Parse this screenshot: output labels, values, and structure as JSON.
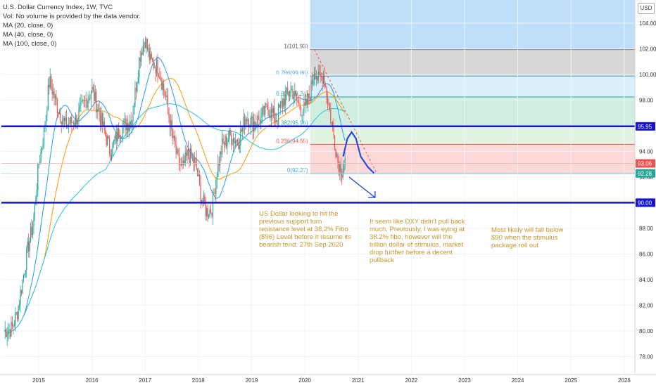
{
  "header": {
    "title": "U.S. Dollar Currency Index, 1W, TVC",
    "volume_note": "Vol: No volume is provided by the data vendor.",
    "indicators": [
      "MA (20, close, 0)",
      "MA (40, close, 0)",
      "MA (100, close, 0)"
    ],
    "currency_button": "USD"
  },
  "colors": {
    "up_candle": "#26a69a",
    "down_candle": "#ef5350",
    "ma20": "#2196f3",
    "ma40": "#ff9800",
    "ma100": "#26c6da",
    "support_line": "#1515d0",
    "annotation_text": "#c7962a",
    "projection": "#2b4ad8"
  },
  "annotations": {
    "note1": "US Dollar looking to hit the previous support turn resistance level at 38.2% Fibo ($96) Level before it resume its bearish tend.  27th Sep 2020",
    "note2": "It seem like DXY didn't pull back much. Previously, I was eying at 38.2% fibo, however will the trillion dollar of stimulus, market drop further before a decent pullback",
    "note3": "Most likely will fall below $90 when the stimulus package roll out"
  },
  "chart_data": {
    "type": "candlestick",
    "title": "U.S. Dollar Currency Index, 1W, TVC",
    "xlabel": "",
    "ylabel": "",
    "x_ticks": [
      "2015",
      "2016",
      "2017",
      "2018",
      "2019",
      "2020",
      "2021",
      "2022",
      "2023",
      "2024",
      "2025",
      "2026"
    ],
    "y_ticks": [
      "78.00",
      "80.00",
      "82.00",
      "84.00",
      "86.00",
      "88.00",
      "90.00",
      "92.00",
      "94.00",
      "96.00",
      "98.00",
      "100.00",
      "102.00",
      "104.00"
    ],
    "ylim": [
      76.6,
      105.8
    ],
    "xlim": [
      2014.3,
      2026.2
    ],
    "price_badges": [
      {
        "label": "95.95",
        "value": 95.95,
        "color": "#1515d0"
      },
      {
        "label": "93.06",
        "value": 93.06,
        "color": "#ef5350"
      },
      {
        "label": "92.28",
        "value": 92.28,
        "color": "#26a69a"
      },
      {
        "label": "90.00",
        "value": 90.0,
        "color": "#1515d0"
      }
    ],
    "horizontal_lines": [
      {
        "name": "resistance",
        "value": 95.95
      },
      {
        "name": "support",
        "value": 90.0
      }
    ],
    "fibonacci": {
      "levels": [
        {
          "label": "1(101.93)",
          "value": 101.93
        },
        {
          "label": "0.786(99.86)",
          "value": 99.86
        },
        {
          "label": "0.618(98.24)",
          "value": 98.24
        },
        {
          "label": "0.382(95.96)",
          "value": 95.96
        },
        {
          "label": "0.236(94.55)",
          "value": 94.55
        },
        {
          "label": "0(92.27)",
          "value": 92.27
        }
      ]
    },
    "series_path": [
      [
        2014.35,
        80.0
      ],
      [
        2014.5,
        80.2
      ],
      [
        2014.6,
        81.5
      ],
      [
        2014.7,
        84.0
      ],
      [
        2014.8,
        86.5
      ],
      [
        2014.9,
        88.5
      ],
      [
        2015.0,
        93.0
      ],
      [
        2015.1,
        95.5
      ],
      [
        2015.2,
        99.5
      ],
      [
        2015.35,
        97.5
      ],
      [
        2015.5,
        96.0
      ],
      [
        2015.7,
        96.5
      ],
      [
        2015.9,
        98.0
      ],
      [
        2016.0,
        98.8
      ],
      [
        2016.1,
        97.5
      ],
      [
        2016.2,
        96.0
      ],
      [
        2016.35,
        94.0
      ],
      [
        2016.5,
        95.5
      ],
      [
        2016.6,
        96.0
      ],
      [
        2016.75,
        96.5
      ],
      [
        2016.9,
        101.5
      ],
      [
        2017.0,
        102.8
      ],
      [
        2017.1,
        101.0
      ],
      [
        2017.25,
        100.5
      ],
      [
        2017.4,
        98.0
      ],
      [
        2017.5,
        95.5
      ],
      [
        2017.6,
        93.5
      ],
      [
        2017.7,
        92.5
      ],
      [
        2017.8,
        93.8
      ],
      [
        2017.95,
        93.0
      ],
      [
        2018.05,
        90.5
      ],
      [
        2018.15,
        89.3
      ],
      [
        2018.25,
        89.5
      ],
      [
        2018.35,
        92.5
      ],
      [
        2018.45,
        94.5
      ],
      [
        2018.6,
        95.2
      ],
      [
        2018.75,
        94.8
      ],
      [
        2018.9,
        96.8
      ],
      [
        2019.0,
        96.2
      ],
      [
        2019.15,
        96.5
      ],
      [
        2019.3,
        97.4
      ],
      [
        2019.45,
        96.5
      ],
      [
        2019.6,
        98.0
      ],
      [
        2019.75,
        98.8
      ],
      [
        2019.9,
        97.5
      ],
      [
        2020.0,
        97.2
      ],
      [
        2020.1,
        98.5
      ],
      [
        2020.18,
        100.5
      ],
      [
        2020.25,
        99.5
      ],
      [
        2020.35,
        100.0
      ],
      [
        2020.45,
        97.5
      ],
      [
        2020.55,
        95.0
      ],
      [
        2020.62,
        93.3
      ],
      [
        2020.7,
        92.5
      ],
      [
        2020.76,
        93.3
      ]
    ]
  }
}
